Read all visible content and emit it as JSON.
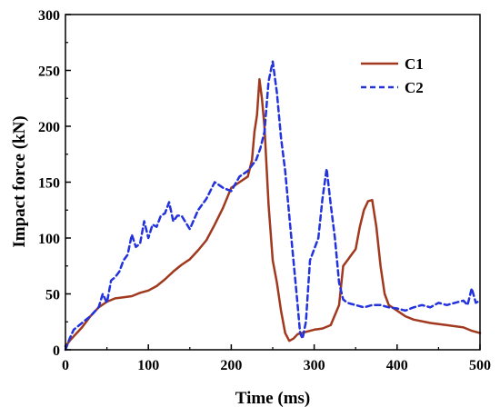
{
  "chart_data": {
    "type": "line",
    "title": "",
    "xlabel": "Time (ms)",
    "ylabel": "Impact force (kN)",
    "xlim": [
      0,
      500
    ],
    "ylim": [
      0,
      300
    ],
    "xticks": [
      0,
      100,
      200,
      300,
      400,
      500
    ],
    "yticks": [
      0,
      50,
      100,
      150,
      200,
      250,
      300
    ],
    "grid": false,
    "legend_position": "top-right",
    "series": [
      {
        "name": "C1",
        "color": "#a0391e",
        "style": "solid",
        "x": [
          0,
          5,
          10,
          20,
          30,
          40,
          50,
          60,
          70,
          80,
          90,
          100,
          110,
          120,
          130,
          140,
          150,
          160,
          170,
          180,
          190,
          200,
          210,
          220,
          225,
          228,
          231,
          234,
          237,
          240,
          245,
          250,
          255,
          260,
          265,
          270,
          275,
          280,
          290,
          300,
          310,
          320,
          330,
          335,
          340,
          345,
          350,
          355,
          360,
          365,
          370,
          375,
          380,
          385,
          390,
          400,
          410,
          420,
          440,
          460,
          480,
          490,
          495,
          500
        ],
        "y": [
          3,
          8,
          12,
          20,
          30,
          38,
          43,
          46,
          47,
          48,
          51,
          53,
          57,
          63,
          70,
          76,
          81,
          89,
          98,
          112,
          127,
          145,
          150,
          155,
          170,
          195,
          210,
          242,
          225,
          200,
          130,
          80,
          60,
          35,
          15,
          8,
          10,
          14,
          16,
          18,
          19,
          22,
          40,
          75,
          80,
          85,
          90,
          110,
          125,
          133,
          134,
          110,
          75,
          50,
          40,
          35,
          30,
          27,
          24,
          22,
          20,
          17,
          16,
          15
        ]
      },
      {
        "name": "C2",
        "color": "#2232dd",
        "style": "dashed",
        "x": [
          0,
          5,
          10,
          20,
          30,
          40,
          45,
          50,
          55,
          60,
          65,
          70,
          75,
          80,
          85,
          90,
          95,
          100,
          105,
          110,
          115,
          120,
          125,
          130,
          135,
          140,
          150,
          160,
          170,
          180,
          190,
          200,
          210,
          220,
          230,
          235,
          240,
          245,
          250,
          255,
          260,
          265,
          270,
          275,
          280,
          283,
          286,
          290,
          295,
          300,
          305,
          310,
          315,
          320,
          325,
          330,
          335,
          340,
          350,
          360,
          370,
          380,
          390,
          400,
          410,
          420,
          430,
          440,
          450,
          460,
          470,
          480,
          485,
          490,
          495,
          500
        ],
        "y": [
          0,
          10,
          18,
          24,
          30,
          38,
          50,
          42,
          62,
          65,
          70,
          80,
          85,
          103,
          92,
          95,
          115,
          100,
          112,
          110,
          120,
          122,
          132,
          115,
          120,
          120,
          108,
          125,
          135,
          150,
          145,
          142,
          155,
          160,
          170,
          180,
          195,
          240,
          258,
          230,
          190,
          160,
          120,
          80,
          40,
          15,
          10,
          25,
          80,
          90,
          100,
          135,
          162,
          130,
          100,
          60,
          45,
          42,
          40,
          38,
          40,
          40,
          38,
          37,
          35,
          38,
          40,
          38,
          42,
          40,
          42,
          44,
          40,
          55,
          42,
          44
        ]
      }
    ]
  }
}
